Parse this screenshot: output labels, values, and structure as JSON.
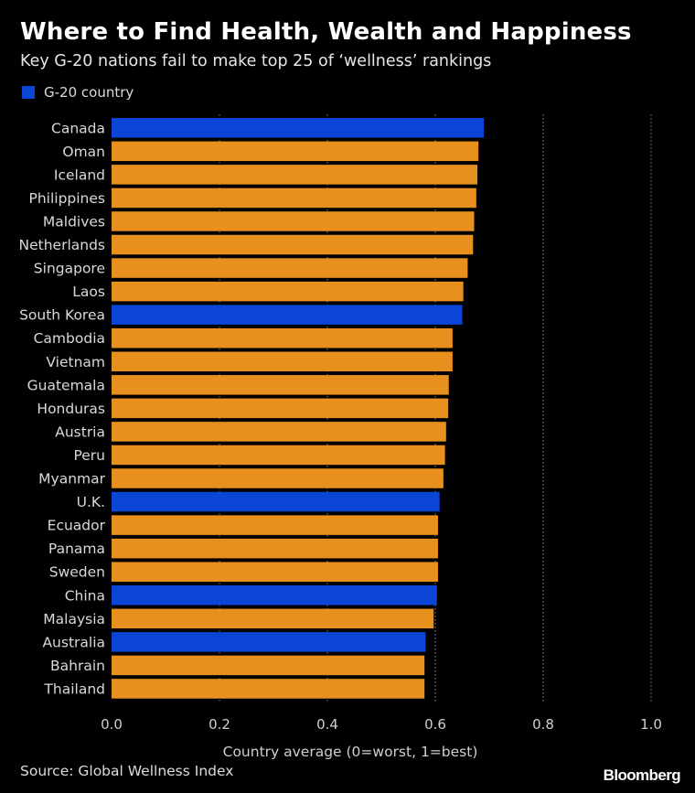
{
  "header": {
    "title": "Where to Find Health, Wealth and Happiness",
    "subtitle": "Key G-20 nations fail to make top 25 of ‘wellness’ rankings"
  },
  "legend": {
    "label": "G-20 country",
    "color": "#0b45d6"
  },
  "colors": {
    "g20": "#0b45d6",
    "other": "#e8901e",
    "grid": "#8c8c8c",
    "axis_text": "#cfcfcf"
  },
  "chart_data": {
    "type": "bar",
    "orientation": "horizontal",
    "title": "Where to Find Health, Wealth and Happiness",
    "xlabel": "Country average (0=worst, 1=best)",
    "ylabel": "",
    "xlim": [
      0,
      1.0
    ],
    "ticks": [
      0,
      0.2,
      0.4,
      0.6,
      0.8,
      1.0
    ],
    "tick_labels": [
      "0.0",
      "0.2",
      "0.4",
      "0.6",
      "0.8",
      "1.0"
    ],
    "grid": true,
    "categories": [
      "Canada",
      "Oman",
      "Iceland",
      "Philippines",
      "Maldives",
      "Netherlands",
      "Singapore",
      "Laos",
      "South Korea",
      "Cambodia",
      "Vietnam",
      "Guatemala",
      "Honduras",
      "Austria",
      "Peru",
      "Myanmar",
      "U.K.",
      "Ecuador",
      "Panama",
      "Sweden",
      "China",
      "Malaysia",
      "Australia",
      "Bahrain",
      "Thailand"
    ],
    "values": [
      0.69,
      0.68,
      0.678,
      0.676,
      0.672,
      0.67,
      0.66,
      0.652,
      0.65,
      0.632,
      0.632,
      0.625,
      0.624,
      0.62,
      0.618,
      0.615,
      0.608,
      0.605,
      0.605,
      0.605,
      0.603,
      0.597,
      0.582,
      0.58,
      0.58
    ],
    "g20": [
      true,
      false,
      false,
      false,
      false,
      false,
      false,
      false,
      true,
      false,
      false,
      false,
      false,
      false,
      false,
      false,
      true,
      false,
      false,
      false,
      true,
      false,
      true,
      false,
      false
    ]
  },
  "footer": {
    "source": "Source: Global Wellness Index",
    "brand": "Bloomberg"
  }
}
